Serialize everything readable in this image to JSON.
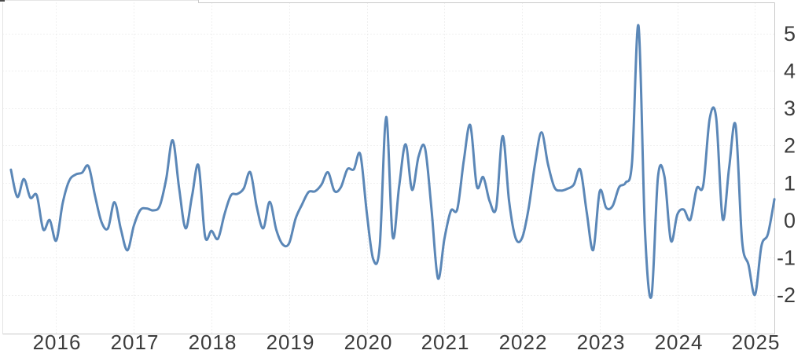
{
  "chart_data": {
    "type": "line",
    "title": "",
    "series": [
      {
        "name": "value",
        "color": "#5b87b7",
        "line_width": 3,
        "start": "2015-06",
        "frequency": "monthly",
        "start_month_offset_from_2016": -7,
        "values": [
          1.35,
          0.62,
          1.1,
          0.6,
          0.66,
          -0.25,
          0.0,
          -0.55,
          0.45,
          1.05,
          1.22,
          1.27,
          1.44,
          0.65,
          -0.05,
          -0.22,
          0.48,
          -0.25,
          -0.81,
          -0.15,
          0.27,
          0.31,
          0.26,
          0.38,
          1.1,
          2.14,
          0.85,
          -0.22,
          0.65,
          1.46,
          -0.43,
          -0.29,
          -0.5,
          0.15,
          0.66,
          0.7,
          0.85,
          1.28,
          0.35,
          -0.22,
          0.49,
          -0.25,
          -0.65,
          -0.62,
          0.04,
          0.42,
          0.75,
          0.77,
          0.95,
          1.28,
          0.78,
          0.88,
          1.36,
          1.36,
          1.76,
          0.2,
          -1.05,
          -0.7,
          2.76,
          -0.44,
          0.9,
          2.03,
          0.81,
          1.7,
          1.93,
          0.3,
          -1.56,
          -0.5,
          0.25,
          0.3,
          1.6,
          2.54,
          0.91,
          1.15,
          0.5,
          0.33,
          2.25,
          0.5,
          -0.48,
          -0.48,
          0.3,
          1.5,
          2.35,
          1.5,
          0.88,
          0.79,
          0.84,
          0.95,
          1.35,
          0.2,
          -0.8,
          0.77,
          0.33,
          0.38,
          0.88,
          1.0,
          1.55,
          5.2,
          -0.3,
          -2.04,
          1.15,
          1.17,
          -0.55,
          0.15,
          0.28,
          0.01,
          0.85,
          0.93,
          2.72,
          2.74,
          0.03,
          1.4,
          2.54,
          -0.55,
          -1.2,
          -2.0,
          -0.69,
          -0.37,
          0.56
        ]
      }
    ],
    "x_tick_years": [
      2016,
      2017,
      2018,
      2019,
      2020,
      2021,
      2022,
      2023,
      2024,
      2025
    ],
    "y_ticks": [
      5,
      4,
      3,
      2,
      1,
      0,
      -1,
      -2
    ],
    "ylim": [
      -3.05,
      5.82
    ],
    "xlim_months": [
      -8.26,
      111.05
    ],
    "grid": {
      "style": "dotted",
      "color": "#e0e0e0"
    },
    "legend": "none",
    "y_axis_side": "right",
    "axis_label_color": "#3c3c3c",
    "plot_border_color": "#c9c9c9",
    "left_border_color": "#e3e3e3",
    "x_label_font_px": 26,
    "y_label_font_px": 27
  }
}
